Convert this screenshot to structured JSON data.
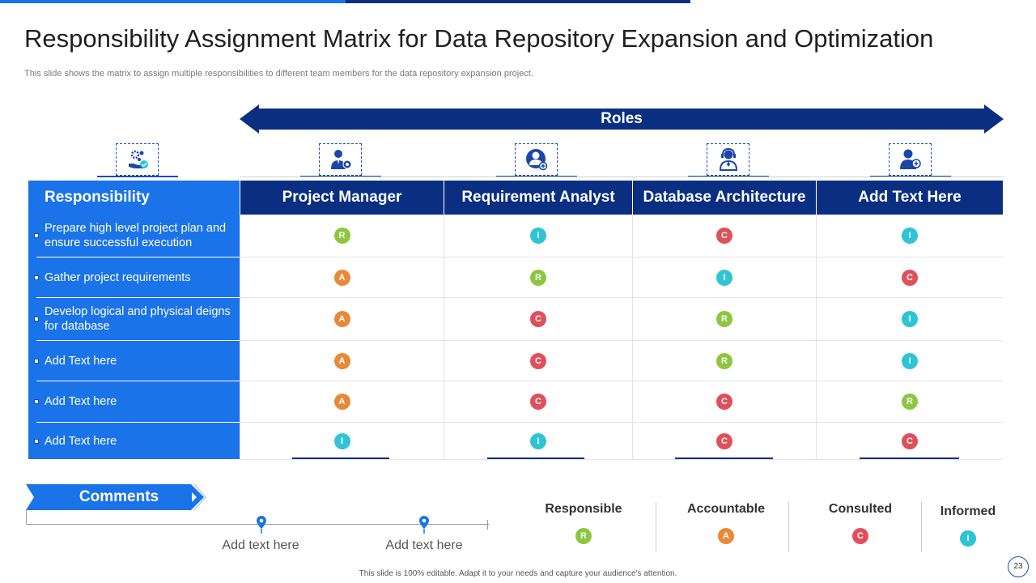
{
  "title": "Responsibility Assignment Matrix for Data Repository Expansion and Optimization",
  "subtitle": "This slide shows the matrix to  assign multiple responsibilities to different team members for the data repository expansion project.",
  "roles_label": "Roles",
  "colors": {
    "R": "#8dc63f",
    "A": "#e8893a",
    "C": "#e0505a",
    "I": "#2ec4d6",
    "accent": "#1a73e8",
    "navy": "#0a2f82"
  },
  "icons": [
    "settings-hand-icon",
    "manager-gear-icon",
    "analyst-search-icon",
    "architect-headset-icon",
    "user-add-icon"
  ],
  "matrix": {
    "header": [
      "Responsibility",
      "Project Manager",
      "Requirement Analyst",
      "Database Architecture",
      "Add Text Here"
    ],
    "rows": [
      {
        "label": "Prepare high level project plan and ensure successful execution",
        "values": [
          "R",
          "I",
          "C",
          "I"
        ]
      },
      {
        "label": "Gather project requirements",
        "values": [
          "A",
          "R",
          "I",
          "C"
        ]
      },
      {
        "label": "Develop logical and physical deigns for database",
        "values": [
          "A",
          "C",
          "R",
          "I"
        ]
      },
      {
        "label": "Add Text here",
        "values": [
          "A",
          "C",
          "R",
          "I"
        ]
      },
      {
        "label": "Add Text here",
        "values": [
          "A",
          "C",
          "C",
          "R"
        ]
      },
      {
        "label": "Add Text here",
        "values": [
          "I",
          "I",
          "C",
          "C"
        ]
      }
    ]
  },
  "comments": {
    "label": "Comments",
    "points": [
      "Add text here",
      "Add text here"
    ]
  },
  "legend": [
    {
      "label": "Responsible",
      "code": "R"
    },
    {
      "label": "Accountable",
      "code": "A"
    },
    {
      "label": "Consulted",
      "code": "C"
    },
    {
      "label": "Informed",
      "code": "I"
    }
  ],
  "footer": "This slide is 100% editable. Adapt it to your needs and capture your audience's attention.",
  "page_number": "23"
}
